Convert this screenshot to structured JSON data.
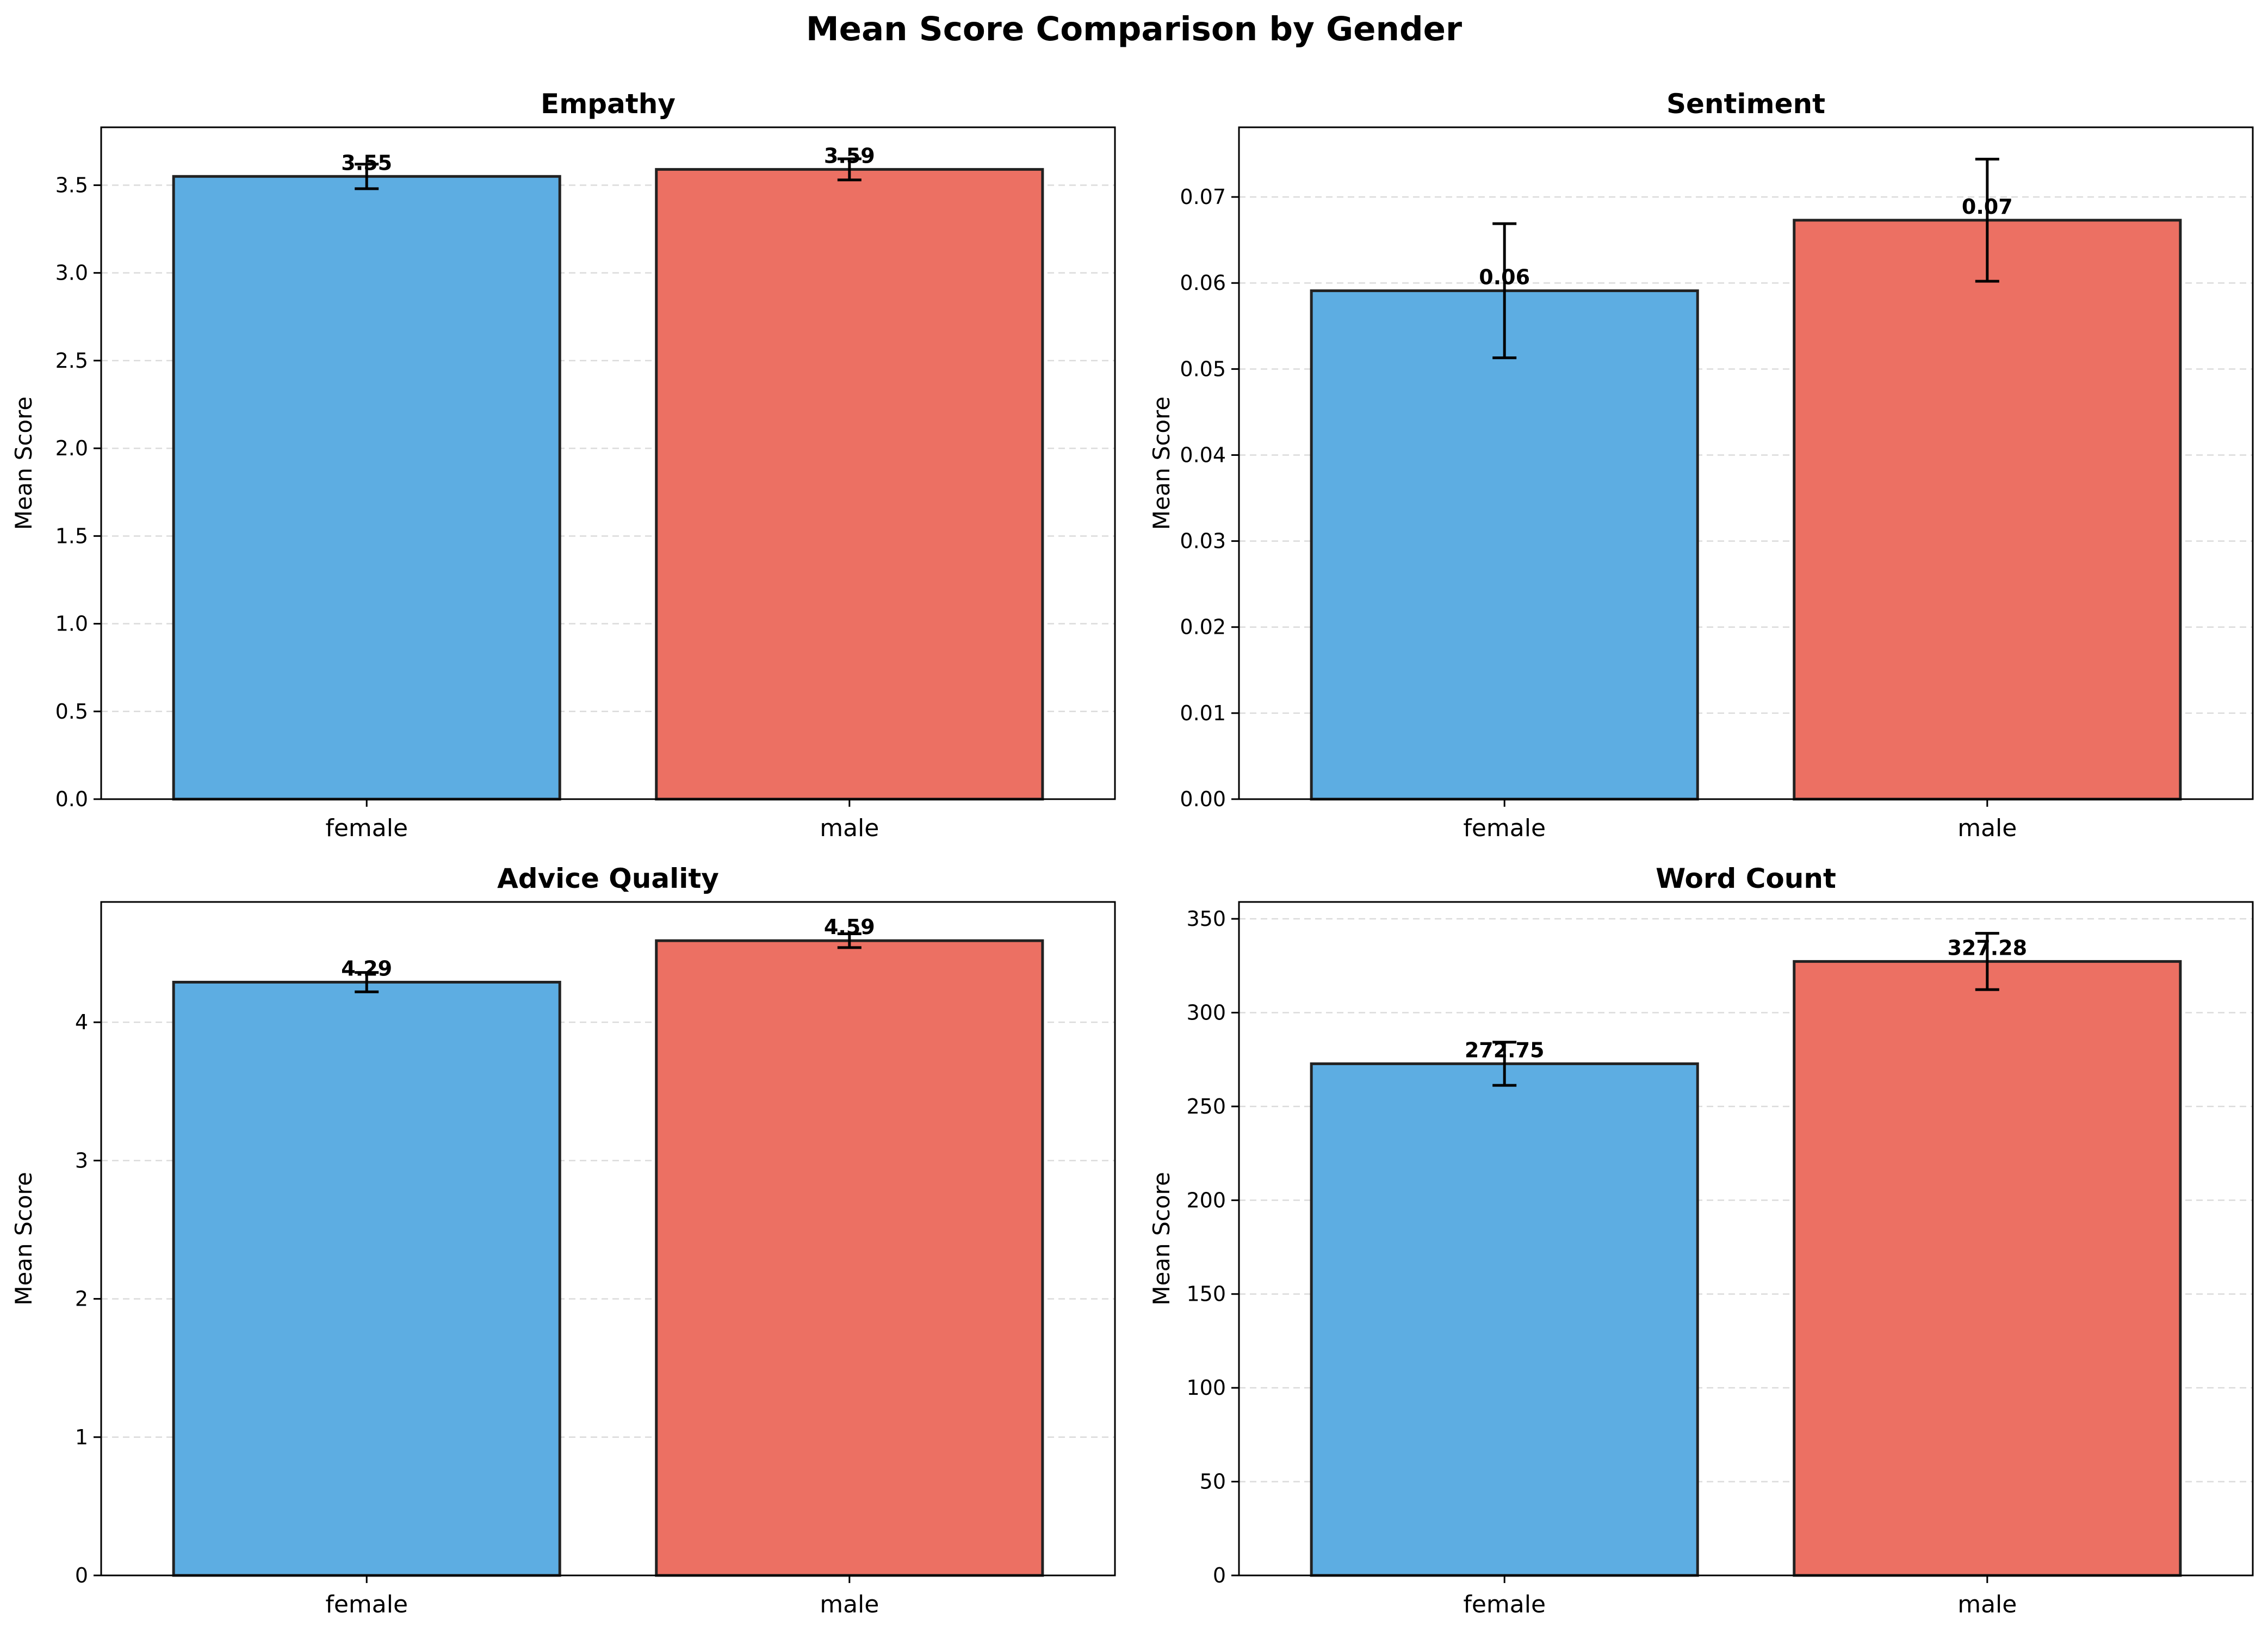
{
  "figure_title": "Mean Score Comparison by Gender",
  "colors": {
    "female": "#5dade2",
    "male": "#ec7063",
    "edge": "#222222",
    "grid": "#cccccc"
  },
  "chart_data": [
    {
      "type": "bar",
      "title": "Empathy",
      "categories": [
        "female",
        "male"
      ],
      "values": [
        3.55,
        3.59
      ],
      "error": [
        0.07,
        0.06
      ],
      "data_labels": [
        "3.55",
        "3.59"
      ],
      "ylabel": "Mean Score",
      "ylim": [
        0,
        3.83
      ],
      "yticks": [
        0,
        0.5,
        1.0,
        1.5,
        2.0,
        2.5,
        3.0,
        3.5
      ],
      "ytick_labels": [
        "0.0",
        "0.5",
        "1.0",
        "1.5",
        "2.0",
        "2.5",
        "3.0",
        "3.5"
      ],
      "grid": "y-dashed"
    },
    {
      "type": "bar",
      "title": "Sentiment",
      "categories": [
        "female",
        "male"
      ],
      "values": [
        0.0591,
        0.0673
      ],
      "error": [
        0.0078,
        0.0071
      ],
      "data_labels": [
        "0.06",
        "0.07"
      ],
      "ylabel": "Mean Score",
      "ylim": [
        0,
        0.0781
      ],
      "yticks": [
        0,
        0.01,
        0.02,
        0.03,
        0.04,
        0.05,
        0.06,
        0.07
      ],
      "ytick_labels": [
        "0.00",
        "0.01",
        "0.02",
        "0.03",
        "0.04",
        "0.05",
        "0.06",
        "0.07"
      ],
      "grid": "y-dashed"
    },
    {
      "type": "bar",
      "title": "Advice Quality",
      "categories": [
        "female",
        "male"
      ],
      "values": [
        4.29,
        4.59
      ],
      "error": [
        0.07,
        0.05
      ],
      "data_labels": [
        "4.29",
        "4.59"
      ],
      "ylabel": "Mean Score",
      "ylim": [
        0,
        4.87
      ],
      "yticks": [
        0,
        1,
        2,
        3,
        4
      ],
      "ytick_labels": [
        "0",
        "1",
        "2",
        "3",
        "4"
      ],
      "grid": "y-dashed"
    },
    {
      "type": "bar",
      "title": "Word Count",
      "categories": [
        "female",
        "male"
      ],
      "values": [
        272.75,
        327.28
      ],
      "error": [
        11.5,
        15.0
      ],
      "data_labels": [
        "272.75",
        "327.28"
      ],
      "ylabel": "Mean Score",
      "ylim": [
        0,
        359
      ],
      "yticks": [
        0,
        50,
        100,
        150,
        200,
        250,
        300,
        350
      ],
      "ytick_labels": [
        "0",
        "50",
        "100",
        "150",
        "200",
        "250",
        "300",
        "350"
      ],
      "grid": "y-dashed"
    }
  ]
}
